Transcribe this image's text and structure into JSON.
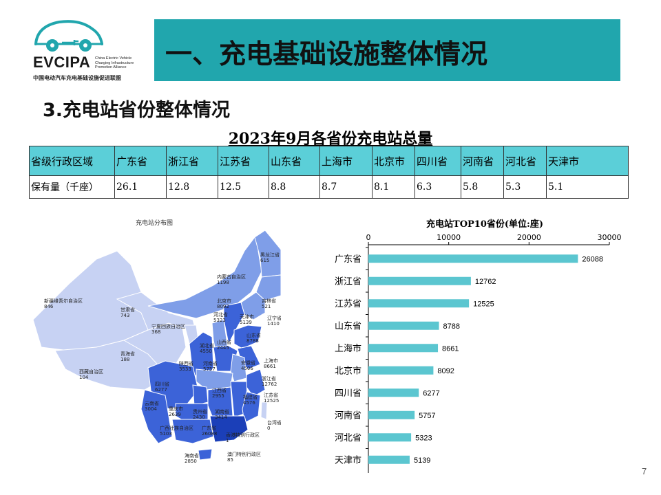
{
  "logo": {
    "main_text": "EVCIPA",
    "side_lines": [
      "China Electric Vehicle",
      "Charging Infrastructure",
      "Promotion Alliance"
    ],
    "sub_text": "中国电动汽车充电基础设施促进联盟"
  },
  "header": {
    "title": "一、充电基础设施整体情况"
  },
  "section": {
    "title": "3.充电站省份整体情况"
  },
  "table": {
    "title": "2023年9月各省份充电站总量",
    "header_label": "省级行政区域",
    "row_label": "保有量（千座）",
    "provinces": [
      "广东省",
      "浙江省",
      "江苏省",
      "山东省",
      "上海市",
      "北京市",
      "四川省",
      "河南省",
      "河北省",
      "天津市"
    ],
    "values": [
      "26.1",
      "12.8",
      "12.5",
      "8.8",
      "8.7",
      "8.1",
      "6.3",
      "5.8",
      "5.3",
      "5.1"
    ]
  },
  "map": {
    "title": "充电站分布图",
    "colors": {
      "low": "#c7d2f3",
      "mid": "#7f9ee8",
      "high": "#3c63d8",
      "top": "#1b3fb8",
      "border": "#ffffff"
    },
    "labels": [
      {
        "name": "黑龙江省",
        "value": "615"
      },
      {
        "name": "内蒙古自治区",
        "value": "1198"
      },
      {
        "name": "新疆维吾尔自治区",
        "value": "846"
      },
      {
        "name": "吉林省",
        "value": "521"
      },
      {
        "name": "甘肃省",
        "value": "743"
      },
      {
        "name": "北京市",
        "value": "8092"
      },
      {
        "name": "河北省",
        "value": "5323"
      },
      {
        "name": "天津市",
        "value": "5139"
      },
      {
        "name": "辽宁省",
        "value": "1410"
      },
      {
        "name": "宁夏回族自治区",
        "value": "368"
      },
      {
        "name": "山东省",
        "value": "8788"
      },
      {
        "name": "山西省",
        "value": "2445"
      },
      {
        "name": "青海省",
        "value": "188"
      },
      {
        "name": "湖北省",
        "value": "4550"
      },
      {
        "name": "安徽省",
        "value": "4506"
      },
      {
        "name": "上海市",
        "value": "8661"
      },
      {
        "name": "西藏自治区",
        "value": "104"
      },
      {
        "name": "陕西省",
        "value": "3533"
      },
      {
        "name": "河南省",
        "value": "5757"
      },
      {
        "name": "浙江省",
        "value": "12762"
      },
      {
        "name": "四川省",
        "value": "6277"
      },
      {
        "name": "江西省",
        "value": "2955"
      },
      {
        "name": "江苏省",
        "value": "12525"
      },
      {
        "name": "云南省",
        "value": "3004"
      },
      {
        "name": "重庆市",
        "value": "2639"
      },
      {
        "name": "福建省",
        "value": "4576"
      },
      {
        "name": "贵州省",
        "value": "2430"
      },
      {
        "name": "湖南省",
        "value": "3414"
      },
      {
        "name": "台湾省",
        "value": "0"
      },
      {
        "name": "广西壮族自治区",
        "value": "5103"
      },
      {
        "name": "广东省",
        "value": "26088"
      },
      {
        "name": "香港特别行政区",
        "value": "1"
      },
      {
        "name": "澳门特别行政区",
        "value": "85"
      },
      {
        "name": "海南省",
        "value": "2850"
      }
    ]
  },
  "chart_data": {
    "type": "bar",
    "orientation": "horizontal",
    "title": "充电站TOP10省份(单位:座)",
    "categories": [
      "广东省",
      "浙江省",
      "江苏省",
      "山东省",
      "上海市",
      "北京市",
      "四川省",
      "河南省",
      "河北省",
      "天津市"
    ],
    "values": [
      26088,
      12762,
      12525,
      8788,
      8661,
      8092,
      6277,
      5757,
      5323,
      5139
    ],
    "xlim": [
      0,
      30000
    ],
    "xticks": [
      0,
      10000,
      20000,
      30000
    ],
    "axis_position": "top",
    "bar_color": "#5bc6d0",
    "grid": false
  },
  "page": {
    "number": "7"
  }
}
